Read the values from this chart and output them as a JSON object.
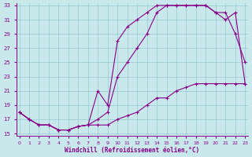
{
  "xlabel": "Windchill (Refroidissement éolien,°C)",
  "bg_color": "#c8e8ec",
  "grid_color": "#96c8d2",
  "line_color": "#880088",
  "xlim": [
    0,
    23
  ],
  "ylim": [
    15,
    33
  ],
  "xticks": [
    0,
    1,
    2,
    3,
    4,
    5,
    6,
    7,
    8,
    9,
    10,
    11,
    12,
    13,
    14,
    15,
    16,
    17,
    18,
    19,
    20,
    21,
    22,
    23
  ],
  "yticks": [
    15,
    17,
    19,
    21,
    23,
    25,
    27,
    29,
    31,
    33
  ],
  "line1_x": [
    0,
    1,
    2,
    3,
    4,
    5,
    6,
    7,
    8,
    9,
    10,
    11,
    12,
    13,
    14,
    15,
    16,
    17,
    18,
    19,
    20,
    21,
    22,
    23
  ],
  "line1_y": [
    18,
    17,
    16.2,
    16.2,
    15.5,
    15.5,
    16,
    16.2,
    21,
    19,
    28,
    30,
    31,
    32,
    33,
    33,
    33,
    33,
    33,
    33,
    32,
    32,
    29,
    25
  ],
  "line2_x": [
    0,
    1,
    2,
    3,
    4,
    5,
    6,
    7,
    8,
    9,
    10,
    11,
    12,
    13,
    14,
    15,
    16,
    17,
    18,
    19,
    20,
    21,
    22,
    23
  ],
  "line2_y": [
    18,
    17,
    16.2,
    16.2,
    15.5,
    15.5,
    16,
    16.2,
    17,
    18,
    23,
    25,
    27,
    29,
    32,
    33,
    33,
    33,
    33,
    33,
    32,
    31,
    32,
    22
  ],
  "line3_x": [
    0,
    1,
    2,
    3,
    4,
    5,
    6,
    7,
    8,
    9,
    10,
    11,
    12,
    13,
    14,
    15,
    16,
    17,
    18,
    19,
    20,
    21,
    22,
    23
  ],
  "line3_y": [
    18,
    17,
    16.2,
    16.2,
    15.5,
    15.5,
    16,
    16.2,
    16.2,
    16.2,
    17,
    17.5,
    18,
    19,
    20,
    20,
    21,
    21.5,
    22,
    22,
    22,
    22,
    22,
    22
  ],
  "figsize": [
    3.2,
    2.0
  ],
  "dpi": 100
}
